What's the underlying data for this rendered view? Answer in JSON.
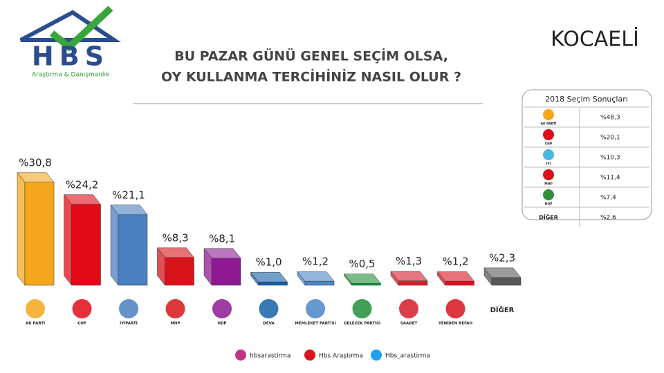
{
  "header": {
    "logo": "HBS",
    "logo_subtitle": "Araştırma & Danışmanlık",
    "region": "KOCAELİ"
  },
  "chart_data": {
    "type": "bar3d",
    "title_lines": [
      "BU PAZAR GÜNÜ GENEL SEÇİM OLSA,",
      "OY KULLANMA TERCİHİNİZ NASIL OLUR ?"
    ],
    "categories": [
      "AK PARTİ",
      "CHP",
      "İYİPARTİ",
      "MHP",
      "HDP",
      "DEVA",
      "MEMLEKET PARTİSİ",
      "GELECEK PARTİSİ",
      "SAADET",
      "YENİDEN REFAH",
      "DİĞER"
    ],
    "values": [
      30.8,
      24.2,
      21.1,
      8.3,
      8.1,
      1.0,
      1.2,
      0.5,
      1.3,
      1.2,
      2.3
    ],
    "value_labels": [
      "%30,8",
      "%24,2",
      "%21,1",
      "%8,3",
      "%8,1",
      "%1,0",
      "%1,2",
      "%0,5",
      "%1,3",
      "%1,2",
      "%2,3"
    ],
    "colors": [
      "#f5a71c",
      "#e30a17",
      "#4a7fc1",
      "#d7141a",
      "#8e1a93",
      "#1560a8",
      "#4a86c8",
      "#1f8f3a",
      "#d51c2b",
      "#d8141c",
      "#58585a"
    ],
    "ylim": [
      0,
      32
    ]
  },
  "results_2018": {
    "title": "2018 Seçim Sonuçları",
    "rows": [
      {
        "label": "AK PARTİ",
        "value": "%48,3"
      },
      {
        "label": "CHP",
        "value": "%20,1"
      },
      {
        "label": "İYİ",
        "value": "%10,3"
      },
      {
        "label": "MHP",
        "value": "%11,4"
      },
      {
        "label": "HDP",
        "value": "%7,4"
      },
      {
        "label": "DİĞER",
        "value": "%2,6"
      }
    ]
  },
  "footer": [
    "hbsarastirma",
    "Hbs Araştırma",
    "Hbs_arastirma"
  ]
}
